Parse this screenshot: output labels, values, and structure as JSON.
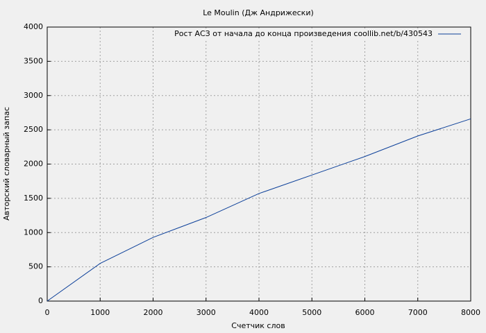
{
  "chart_data": {
    "type": "line",
    "title": "Le Moulin (Дж Андрижески)",
    "x_label": "Счетчик слов",
    "y_label": "Авторский словарный запас",
    "x": [
      0,
      1000,
      2000,
      3000,
      4000,
      5000,
      6000,
      7000,
      8000
    ],
    "series": [
      {
        "name": "Рост АСЗ от начала до конца произведения coollib.net/b/430543",
        "color": "#0b3f99",
        "values": [
          0,
          550,
          930,
          1220,
          1570,
          1840,
          2110,
          2410,
          2660
        ]
      }
    ],
    "xlim": [
      0,
      8000
    ],
    "xticks": [
      0,
      1000,
      2000,
      3000,
      4000,
      5000,
      6000,
      7000,
      8000
    ],
    "ylim": [
      0,
      4000
    ],
    "yticks": [
      0,
      500,
      1000,
      1500,
      2000,
      2500,
      3000,
      3500,
      4000
    ],
    "grid": true,
    "legend": "top-right"
  }
}
